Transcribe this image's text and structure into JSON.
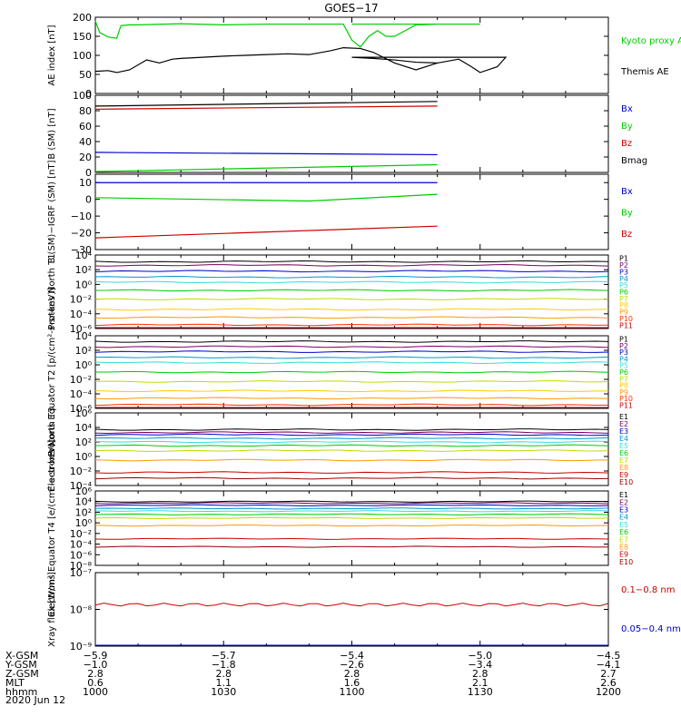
{
  "title": "GOES−17",
  "x_axis": {
    "rows": [
      {
        "label": "X-GSM",
        "values": [
          "−5.9",
          "−5.7",
          "−5.4",
          "−5.0",
          "−4.5"
        ]
      },
      {
        "label": "Y-GSM",
        "values": [
          "−1.0",
          "−1.8",
          "−2.6",
          "−3.4",
          "−4.1"
        ]
      },
      {
        "label": "Z-GSM",
        "values": [
          "2.8",
          "2.8",
          "2.8",
          "2.8",
          "2.7"
        ]
      },
      {
        "label": "MLT",
        "values": [
          "0.6",
          "1.1",
          "1.6",
          "2.1",
          "2.6"
        ]
      },
      {
        "label": "hhmm",
        "values": [
          "1000",
          "1030",
          "1100",
          "1130",
          "1200"
        ]
      }
    ],
    "date": "2020 Jun 12"
  },
  "chart_data": [
    {
      "type": "line",
      "ylabel": "AE index [nT]",
      "ylim": [
        0,
        200
      ],
      "yticks": [
        "0",
        "50",
        "100",
        "150",
        "200"
      ],
      "series": [
        {
          "name": "Kyoto proxy AE",
          "color": "#00cc00",
          "x": [
            1000,
            1001,
            1003,
            1005,
            1006,
            1008,
            1010,
            1020,
            1030,
            1040,
            1050,
            1055,
            1058,
            1060,
            1062,
            1064,
            1066,
            1068,
            1070,
            1075,
            1080,
            1090,
            1100,
            1110,
            1120
          ],
          "values": [
            190,
            160,
            148,
            145,
            178,
            180,
            180,
            183,
            180,
            182,
            182,
            182,
            182,
            140,
            122,
            150,
            165,
            150,
            150,
            180,
            182,
            182,
            182,
            182,
            182
          ]
        },
        {
          "name": "Themis AE",
          "color": "#000000",
          "x": [
            1000,
            1003,
            1005,
            1008,
            1012,
            1015,
            1018,
            1020,
            1025,
            1030,
            1035,
            1040,
            1045,
            1050,
            1055,
            1058,
            1062,
            1065,
            1070,
            1075,
            1080,
            1085,
            1088,
            1090,
            1094,
            1096,
            1100,
            1105,
            1110,
            1115,
            1120
          ],
          "values": [
            58,
            60,
            55,
            62,
            88,
            80,
            90,
            92,
            95,
            98,
            100,
            102,
            104,
            102,
            112,
            120,
            118,
            108,
            80,
            62,
            80,
            90,
            70,
            55,
            70,
            95,
            95,
            92,
            88,
            82,
            80
          ]
        }
      ]
    },
    {
      "type": "line",
      "ylabel": "B (SM) [nT]",
      "ylim": [
        0,
        100
      ],
      "yticks": [
        "0",
        "20",
        "40",
        "60",
        "80",
        "100"
      ],
      "series": [
        {
          "name": "Bx",
          "color": "#0000cc",
          "x": [
            1000,
            1120
          ],
          "values": [
            26,
            23
          ]
        },
        {
          "name": "By",
          "color": "#00cc00",
          "x": [
            1000,
            1120
          ],
          "values": [
            -1,
            10
          ]
        },
        {
          "name": "Bz",
          "color": "#cc0000",
          "x": [
            1000,
            1120
          ],
          "values": [
            82,
            86
          ]
        },
        {
          "name": "Bmag",
          "color": "#000000",
          "x": [
            1000,
            1120
          ],
          "values": [
            86,
            92
          ]
        }
      ]
    },
    {
      "type": "line",
      "ylabel": "B (SM)−IGRF (SM) [nT]",
      "ylim": [
        -30,
        15
      ],
      "yticks": [
        "−30",
        "−20",
        "−10",
        "0",
        "10"
      ],
      "series": [
        {
          "name": "Bx",
          "color": "#0000cc",
          "x": [
            1000,
            1120
          ],
          "values": [
            10,
            10
          ]
        },
        {
          "name": "By",
          "color": "#00cc00",
          "x": [
            1000,
            1050,
            1120
          ],
          "values": [
            1,
            -1,
            3
          ]
        },
        {
          "name": "Bz",
          "color": "#cc0000",
          "x": [
            1000,
            1120
          ],
          "values": [
            -23,
            -16
          ]
        }
      ]
    },
    {
      "type": "line",
      "ylabel": "Protons North T1",
      "ylim_log10": [
        -6,
        4
      ],
      "yticks": [
        "10⁻⁶",
        "10⁻⁴",
        "10⁻²",
        "10⁰",
        "10²",
        "10⁴"
      ],
      "channels": [
        {
          "name": "P1",
          "color": "#000000",
          "log10": 3.1
        },
        {
          "name": "P2",
          "color": "#7a0060",
          "log10": 2.6
        },
        {
          "name": "P3",
          "color": "#0000cc",
          "log10": 1.8
        },
        {
          "name": "P4",
          "color": "#0099cc",
          "log10": 1.0
        },
        {
          "name": "P5",
          "color": "#33dddd",
          "log10": 0.3
        },
        {
          "name": "P6",
          "color": "#00cc00",
          "log10": -0.8
        },
        {
          "name": "P7",
          "color": "#bbdd00",
          "log10": -2.0
        },
        {
          "name": "P8",
          "color": "#ffcc00",
          "log10": -3.4
        },
        {
          "name": "P9",
          "color": "#ff9900",
          "log10": -4.5
        },
        {
          "name": "P10",
          "color": "#ff3300",
          "log10": -5.5
        },
        {
          "name": "P11",
          "color": "#cc0000",
          "log10": -6.5
        }
      ]
    },
    {
      "type": "line",
      "ylabel": "Protons Equator T2 [p/(cm²-s-sr-keV)]",
      "ylim_log10": [
        -6,
        4
      ],
      "yticks": [
        "10⁻⁶",
        "10⁻⁴",
        "10⁻²",
        "10⁰",
        "10²",
        "10⁴"
      ],
      "channels": [
        {
          "name": "P1",
          "color": "#000000",
          "log10": 3.2
        },
        {
          "name": "P2",
          "color": "#7a0060",
          "log10": 2.5
        },
        {
          "name": "P3",
          "color": "#0000cc",
          "log10": 1.8
        },
        {
          "name": "P4",
          "color": "#0099cc",
          "log10": 1.0
        },
        {
          "name": "P5",
          "color": "#33dddd",
          "log10": 0.3
        },
        {
          "name": "P6",
          "color": "#00cc00",
          "log10": -1.0
        },
        {
          "name": "P7",
          "color": "#bbdd00",
          "log10": -2.3
        },
        {
          "name": "P8",
          "color": "#ffcc00",
          "log10": -3.6
        },
        {
          "name": "P9",
          "color": "#ff9900",
          "log10": -4.6
        },
        {
          "name": "P10",
          "color": "#ff3300",
          "log10": -5.5
        },
        {
          "name": "P11",
          "color": "#cc0000",
          "log10": -6.5
        }
      ]
    },
    {
      "type": "line",
      "ylabel": "Electrons North T3",
      "ylim_log10": [
        -4,
        6
      ],
      "yticks": [
        "10⁻⁴",
        "10⁻²",
        "10⁰",
        "10²",
        "10⁴",
        "10⁶"
      ],
      "channels": [
        {
          "name": "E1",
          "color": "#000000",
          "log10": 3.7
        },
        {
          "name": "E2",
          "color": "#7a0060",
          "log10": 3.3
        },
        {
          "name": "E3",
          "color": "#0000cc",
          "log10": 3.0
        },
        {
          "name": "E4",
          "color": "#0099cc",
          "log10": 2.5
        },
        {
          "name": "E5",
          "color": "#33dddd",
          "log10": 2.0
        },
        {
          "name": "E6",
          "color": "#00cc00",
          "log10": 1.5
        },
        {
          "name": "E7",
          "color": "#bbdd00",
          "log10": 0.8
        },
        {
          "name": "E8",
          "color": "#ff9900",
          "log10": -0.5
        },
        {
          "name": "E9",
          "color": "#cc0000",
          "log10": -2.2
        },
        {
          "name": "E10",
          "color": "#990000",
          "log10": -3.0
        }
      ]
    },
    {
      "type": "line",
      "ylabel": "Electrons Equator T4 [e/(cm²-s-sr-keV)]",
      "ylim_log10": [
        -8,
        6
      ],
      "yticks": [
        "10⁻⁸",
        "10⁻⁶",
        "10⁻⁴",
        "10⁻²",
        "10⁰",
        "10²",
        "10⁴",
        "10⁶"
      ],
      "channels": [
        {
          "name": "E1",
          "color": "#000000",
          "log10": 4.0
        },
        {
          "name": "E2",
          "color": "#7a0060",
          "log10": 3.7
        },
        {
          "name": "E3",
          "color": "#0000cc",
          "log10": 3.3
        },
        {
          "name": "E4",
          "color": "#0099cc",
          "log10": 2.7
        },
        {
          "name": "E5",
          "color": "#33dddd",
          "log10": 2.2
        },
        {
          "name": "E6",
          "color": "#00cc00",
          "log10": 1.6
        },
        {
          "name": "E7",
          "color": "#bbdd00",
          "log10": 0.9
        },
        {
          "name": "E8",
          "color": "#ff9900",
          "log10": -0.5
        },
        {
          "name": "E9",
          "color": "#cc0000",
          "log10": -3.0
        },
        {
          "name": "E10",
          "color": "#990000",
          "log10": -4.5
        }
      ]
    },
    {
      "type": "line",
      "ylabel": "Xray flux [W/m²]",
      "ylim_log10": [
        -9,
        -7
      ],
      "yticks": [
        "10⁻⁹",
        "10⁻⁸",
        "10⁻⁷"
      ],
      "series": [
        {
          "name": "0.1−0.8 nm",
          "color": "#cc0000",
          "log10": -7.87
        },
        {
          "name": "0.05−0.4 nm",
          "color": "#0000cc",
          "log10": -9.0
        }
      ]
    }
  ]
}
